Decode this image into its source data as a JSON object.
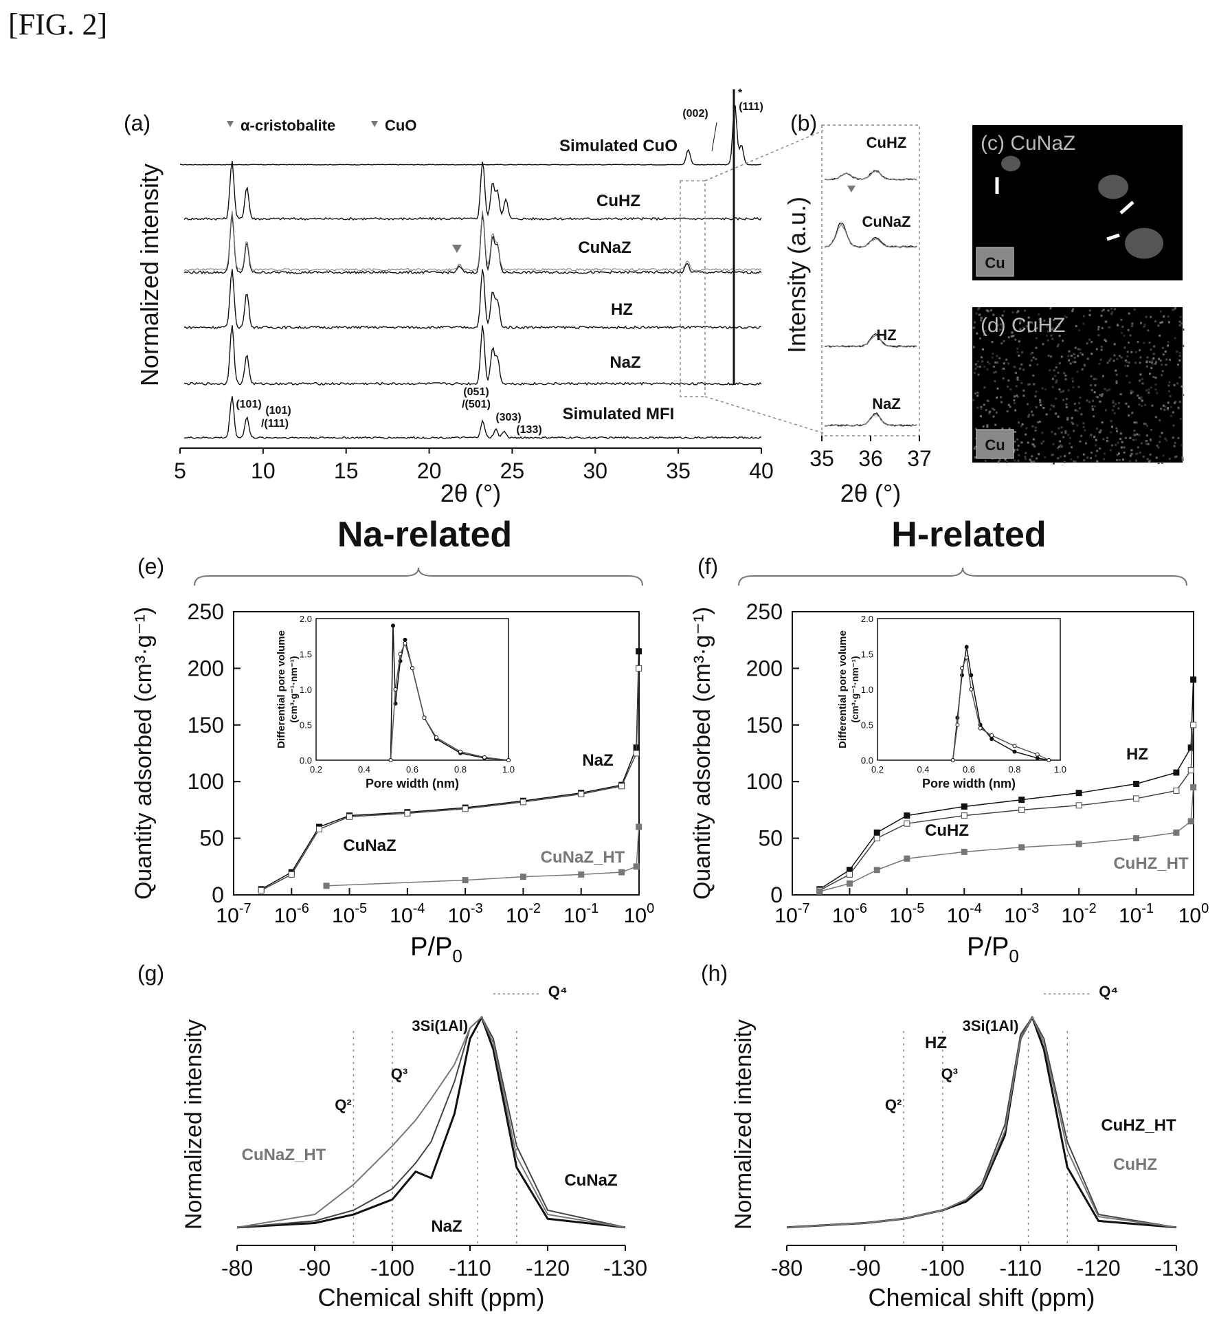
{
  "figure_label": "[FIG. 2]",
  "panels": {
    "a": "(a)",
    "b": "(b)",
    "c": "(c)",
    "d": "(d)",
    "e": "(e)",
    "f": "(f)",
    "g": "(g)",
    "h": "(h)"
  },
  "sections": {
    "na": "Na-related",
    "h": "H-related"
  },
  "micrographs": {
    "c_title": "CuNaZ",
    "d_title": "CuHZ",
    "c_element": "Cu",
    "d_element": "Cu"
  },
  "colors": {
    "ink": "#111111",
    "gray": "#777777",
    "dashed": "#888888"
  },
  "chart_data": [
    {
      "id": "a",
      "type": "line",
      "xlabel": "2θ (°)",
      "ylabel": "Normalized intensity",
      "xlim": [
        5,
        40
      ],
      "xticks": [
        5,
        10,
        15,
        20,
        25,
        30,
        35,
        40
      ],
      "legend": [
        "α-cristobalite",
        "CuO"
      ],
      "series": [
        {
          "name": "Simulated CuO",
          "peaks": [
            [
              35.6,
              1.0
            ],
            [
              38.4,
              4.0
            ],
            [
              38.8,
              1.3
            ]
          ]
        },
        {
          "name": "CuHZ",
          "peaks": [
            [
              7.9,
              1.0
            ],
            [
              8.8,
              0.55
            ],
            [
              23.1,
              1.0
            ],
            [
              23.7,
              0.6
            ],
            [
              24.0,
              0.45
            ],
            [
              24.5,
              0.35
            ]
          ]
        },
        {
          "name": "CuNaZ",
          "peaks": [
            [
              7.9,
              1.0
            ],
            [
              8.8,
              0.5
            ],
            [
              21.7,
              0.1
            ],
            [
              23.1,
              1.0
            ],
            [
              23.7,
              0.6
            ],
            [
              24.0,
              0.45
            ],
            [
              35.5,
              0.15
            ]
          ]
        },
        {
          "name": "HZ",
          "peaks": [
            [
              7.9,
              1.0
            ],
            [
              8.8,
              0.6
            ],
            [
              23.1,
              1.0
            ],
            [
              23.7,
              0.6
            ],
            [
              24.0,
              0.45
            ]
          ]
        },
        {
          "name": "NaZ",
          "peaks": [
            [
              7.9,
              1.0
            ],
            [
              8.8,
              0.5
            ],
            [
              23.1,
              1.0
            ],
            [
              23.7,
              0.6
            ],
            [
              24.0,
              0.45
            ]
          ]
        },
        {
          "name": "Simulated MFI",
          "peaks": [
            [
              7.9,
              1.0
            ],
            [
              8.8,
              0.5
            ],
            [
              23.1,
              0.4
            ],
            [
              23.9,
              0.2
            ],
            [
              24.4,
              0.15
            ]
          ]
        }
      ],
      "annotations": [
        "(002)",
        "(111)",
        "*",
        "(101)",
        "(101)",
        "/(111)",
        "(051)",
        "/(501)",
        "(303)",
        "(133)"
      ]
    },
    {
      "id": "b",
      "type": "line",
      "xlabel": "2θ (°)",
      "ylabel": "Intensity (a.u.)",
      "xlim": [
        35,
        37
      ],
      "xticks": [
        35,
        36,
        37
      ],
      "series": [
        {
          "name": "CuHZ"
        },
        {
          "name": "CuNaZ"
        },
        {
          "name": "HZ"
        },
        {
          "name": "NaZ"
        }
      ]
    },
    {
      "id": "e",
      "type": "scatter",
      "xlabel": "P/P",
      "xlabel_sub": "0",
      "ylabel": "Quantity adsorbed (cm³·g⁻¹)",
      "x_scale": "log",
      "xlim": [
        1e-07,
        1
      ],
      "ylim": [
        0,
        250
      ],
      "yticks": [
        0,
        50,
        100,
        150,
        200,
        250
      ],
      "xticks_exp": [
        -7,
        -6,
        -5,
        -4,
        -3,
        -2,
        -1,
        0
      ],
      "series": [
        {
          "name": "NaZ",
          "x": [
            3e-07,
            1e-06,
            3e-06,
            1e-05,
            0.0001,
            0.001,
            0.01,
            0.1,
            0.5,
            0.9,
            0.99
          ],
          "y": [
            5,
            20,
            60,
            70,
            73,
            77,
            83,
            90,
            97,
            130,
            215
          ]
        },
        {
          "name": "CuNaZ",
          "x": [
            3e-07,
            1e-06,
            3e-06,
            1e-05,
            0.0001,
            0.001,
            0.01,
            0.1,
            0.5,
            0.9,
            0.99
          ],
          "y": [
            4,
            18,
            58,
            69,
            72,
            76,
            82,
            89,
            96,
            125,
            200
          ]
        },
        {
          "name": "CuNaZ_HT",
          "x": [
            4e-06,
            0.001,
            0.01,
            0.1,
            0.5,
            0.9,
            0.99
          ],
          "y": [
            8,
            13,
            16,
            18,
            20,
            25,
            60
          ]
        }
      ],
      "inset": {
        "xlabel": "Pore width (nm)",
        "ylabel": "Differential pore volume",
        "ylabel2": "(cm³·g⁻¹·nm⁻¹)",
        "xlim": [
          0.2,
          1.0
        ],
        "ylim": [
          0,
          2.0
        ],
        "xticks": [
          "0.2",
          "0.4",
          "0.6",
          "0.8",
          "1.0"
        ],
        "yticks": [
          "0.0",
          "0.5",
          "1.0",
          "1.5",
          "2.0"
        ],
        "series": [
          {
            "x": [
              0.51,
              0.52,
              0.53,
              0.55,
              0.57,
              0.6,
              0.65,
              0.7,
              0.8,
              0.9,
              1.0
            ],
            "y": [
              0,
              1.9,
              0.8,
              1.4,
              1.7,
              1.3,
              0.6,
              0.3,
              0.1,
              0.03,
              0
            ]
          },
          {
            "x": [
              0.51,
              0.53,
              0.55,
              0.57,
              0.6,
              0.65,
              0.7,
              0.8,
              0.9,
              1.0
            ],
            "y": [
              0,
              1.0,
              1.5,
              1.65,
              1.3,
              0.6,
              0.32,
              0.12,
              0.04,
              0
            ]
          }
        ]
      }
    },
    {
      "id": "f",
      "type": "scatter",
      "xlabel": "P/P",
      "xlabel_sub": "0",
      "ylabel": "Quantity adsorbed (cm³·g⁻¹)",
      "x_scale": "log",
      "xlim": [
        1e-07,
        1
      ],
      "ylim": [
        0,
        250
      ],
      "yticks": [
        0,
        50,
        100,
        150,
        200,
        250
      ],
      "xticks_exp": [
        -7,
        -6,
        -5,
        -4,
        -3,
        -2,
        -1,
        0
      ],
      "series": [
        {
          "name": "HZ",
          "x": [
            3e-07,
            1e-06,
            3e-06,
            1e-05,
            0.0001,
            0.001,
            0.01,
            0.1,
            0.5,
            0.9,
            0.99
          ],
          "y": [
            5,
            22,
            55,
            70,
            78,
            84,
            90,
            98,
            108,
            130,
            190
          ]
        },
        {
          "name": "CuHZ",
          "x": [
            3e-07,
            1e-06,
            3e-06,
            1e-05,
            0.0001,
            0.001,
            0.01,
            0.1,
            0.5,
            0.9,
            0.99
          ],
          "y": [
            4,
            18,
            50,
            63,
            70,
            75,
            79,
            85,
            92,
            110,
            150
          ]
        },
        {
          "name": "CuHZ_HT",
          "x": [
            3e-07,
            1e-06,
            3e-06,
            1e-05,
            0.0001,
            0.001,
            0.01,
            0.1,
            0.5,
            0.9,
            0.99
          ],
          "y": [
            3,
            10,
            22,
            32,
            38,
            42,
            45,
            50,
            55,
            65,
            95
          ]
        }
      ],
      "inset": {
        "xlabel": "Pore width (nm)",
        "ylabel": "Differential pore volume",
        "ylabel2": "(cm³·g⁻¹·nm⁻¹)",
        "xlim": [
          0.2,
          1.0
        ],
        "ylim": [
          0,
          2.0
        ],
        "xticks": [
          "0.2",
          "0.4",
          "0.6",
          "0.8",
          "1.0"
        ],
        "yticks": [
          "0.0",
          "0.5",
          "1.0",
          "1.5",
          "2.0"
        ],
        "series": [
          {
            "x": [
              0.53,
              0.55,
              0.57,
              0.59,
              0.61,
              0.65,
              0.7,
              0.8,
              0.9,
              0.95
            ],
            "y": [
              0,
              0.6,
              1.2,
              1.6,
              1.2,
              0.5,
              0.3,
              0.12,
              0.03,
              0
            ]
          },
          {
            "x": [
              0.53,
              0.55,
              0.57,
              0.59,
              0.61,
              0.65,
              0.7,
              0.8,
              0.9,
              0.95
            ],
            "y": [
              0,
              0.5,
              1.3,
              1.45,
              1.0,
              0.45,
              0.35,
              0.2,
              0.08,
              0
            ]
          }
        ]
      }
    },
    {
      "id": "g",
      "type": "line",
      "xlabel": "Chemical shift (ppm)",
      "ylabel": "Normalized intensity",
      "xlim": [
        -80,
        -130
      ],
      "xticks": [
        "-80",
        "-90",
        "-100",
        "-110",
        "-120",
        "-130"
      ],
      "reference_lines": [
        {
          "label": "Q²",
          "x": -95
        },
        {
          "label": "Q³",
          "x": -100
        },
        {
          "label": "3Si(1Al)",
          "x": -111
        },
        {
          "label": "Q⁴",
          "x": -116
        }
      ],
      "series": [
        {
          "name": "NaZ",
          "x": [
            -80,
            -90,
            -95,
            -100,
            -103,
            -105,
            -108,
            -110,
            -111.5,
            -113,
            -116,
            -120,
            -130
          ],
          "y": [
            0.02,
            0.04,
            0.08,
            0.15,
            0.28,
            0.25,
            0.55,
            0.9,
            1.0,
            0.85,
            0.3,
            0.06,
            0.02
          ]
        },
        {
          "name": "CuNaZ",
          "x": [
            -80,
            -90,
            -95,
            -100,
            -103,
            -105,
            -108,
            -110,
            -111.5,
            -113,
            -116,
            -120,
            -130
          ],
          "y": [
            0.02,
            0.05,
            0.1,
            0.2,
            0.32,
            0.42,
            0.7,
            0.95,
            1.0,
            0.9,
            0.4,
            0.1,
            0.02
          ]
        },
        {
          "name": "CuNaZ_HT",
          "x": [
            -80,
            -90,
            -95,
            -100,
            -103,
            -105,
            -108,
            -110,
            -111.5,
            -113,
            -116,
            -120,
            -130
          ],
          "y": [
            0.02,
            0.08,
            0.22,
            0.4,
            0.52,
            0.62,
            0.78,
            0.95,
            1.0,
            0.88,
            0.35,
            0.08,
            0.02
          ]
        }
      ]
    },
    {
      "id": "h",
      "type": "line",
      "xlabel": "Chemical shift (ppm)",
      "ylabel": "Normalized intensity",
      "xlim": [
        -80,
        -130
      ],
      "xticks": [
        "-80",
        "-90",
        "-100",
        "-110",
        "-120",
        "-130"
      ],
      "reference_lines": [
        {
          "label": "Q²",
          "x": -95
        },
        {
          "label": "Q³",
          "x": -100
        },
        {
          "label": "3Si(1Al)",
          "x": -111
        },
        {
          "label": "Q⁴",
          "x": -116
        }
      ],
      "series": [
        {
          "name": "HZ",
          "x": [
            -80,
            -90,
            -95,
            -100,
            -103,
            -105,
            -108,
            -110,
            -111.5,
            -113,
            -116,
            -120,
            -130
          ],
          "y": [
            0.02,
            0.04,
            0.06,
            0.1,
            0.14,
            0.2,
            0.45,
            0.9,
            1.0,
            0.85,
            0.3,
            0.05,
            0.02
          ]
        },
        {
          "name": "CuHZ_HT",
          "x": [
            -80,
            -90,
            -95,
            -100,
            -103,
            -105,
            -108,
            -110,
            -111.5,
            -113,
            -116,
            -120,
            -130
          ],
          "y": [
            0.02,
            0.04,
            0.06,
            0.1,
            0.15,
            0.22,
            0.5,
            0.92,
            1.0,
            0.9,
            0.42,
            0.08,
            0.02
          ]
        },
        {
          "name": "CuHZ",
          "x": [
            -80,
            -90,
            -95,
            -100,
            -103,
            -105,
            -108,
            -110,
            -111.5,
            -113,
            -116,
            -120,
            -130
          ],
          "y": [
            0.02,
            0.04,
            0.06,
            0.1,
            0.15,
            0.21,
            0.47,
            0.9,
            1.0,
            0.88,
            0.38,
            0.07,
            0.02
          ]
        }
      ]
    }
  ]
}
